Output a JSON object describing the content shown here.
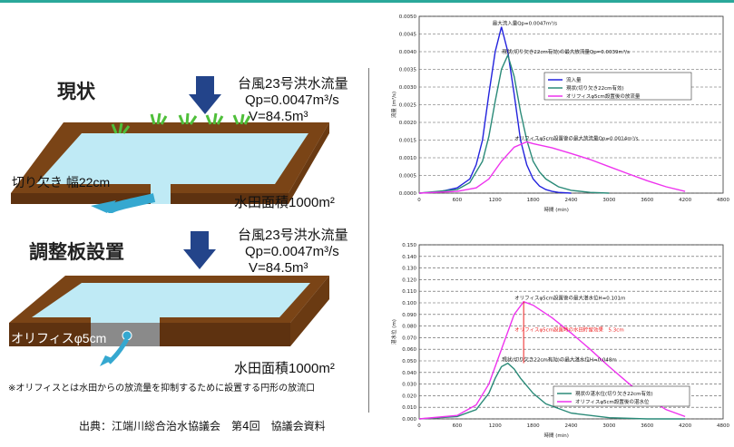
{
  "colors": {
    "soil": "#7a4416",
    "soil_dark": "#5e3210",
    "water": "#bfeaf5",
    "grass": "#4fbf3a",
    "arrow_blue": "#23448a",
    "outflow": "#35a8d0",
    "series_inflow": "#2222dd",
    "series_current": "#2a8a78",
    "series_orifice": "#ee33ee",
    "teal_bar": "#2aa89a"
  },
  "current": {
    "title": "現状",
    "typhoon": "台風23号洪水流量",
    "qp": "Qp=0.0047m³/s",
    "v": "V=84.5m³",
    "notch": "切り欠き 幅22cm",
    "area": "水田面積1000m²"
  },
  "plate": {
    "title": "調整板設置",
    "typhoon": "台風23号洪水流量",
    "qp": "Qp=0.0047m³/s",
    "v": "V=84.5m³",
    "orifice": "オリフィスφ5cm",
    "area": "水田面積1000m²"
  },
  "note": "※オリフィスとは水田からの放流量を抑制するために設置する円形の放流口",
  "source": "出典：江端川総合治水協議会　第4回　協議会資料",
  "chart_data": [
    {
      "type": "line",
      "ylabel": "流量 (m³/s)",
      "xlabel": "時間 (min)",
      "xlim": [
        0,
        4800
      ],
      "ylim": [
        0,
        0.005
      ],
      "xticks": [
        0,
        600,
        1200,
        1800,
        2400,
        3000,
        3600,
        4200,
        4800
      ],
      "yticks": [
        0,
        0.0005,
        0.001,
        0.0015,
        0.002,
        0.0025,
        0.003,
        0.0035,
        0.004,
        0.0045,
        0.005
      ],
      "ytick_labels": [
        "0.0000",
        "0.0005",
        "0.0010",
        "0.0015",
        "0.0020",
        "0.0025",
        "0.0030",
        "0.0035",
        "0.0040",
        "0.0045",
        "0.0050"
      ],
      "grid": true,
      "legend_position": "right",
      "annotations": [
        {
          "text": "最大流入量Qp=0.0047m³/s",
          "at": [
            1300,
            0.0047
          ]
        },
        {
          "text": "現状(切り欠き22cm有効)の最大放流量Qp=0.0039m³/s",
          "at": [
            1450,
            0.0039
          ]
        },
        {
          "text": "オリフィスφ5cm設置後の最大放流量Qp=0.0014m³/s",
          "at": [
            1650,
            0.00145
          ]
        }
      ],
      "series": [
        {
          "name": "流入量",
          "x": [
            0,
            300,
            600,
            800,
            900,
            1000,
            1100,
            1200,
            1300,
            1400,
            1500,
            1600,
            1700,
            1800,
            1900,
            2000,
            2100,
            2200,
            2400
          ],
          "values": [
            0,
            3e-05,
            0.00015,
            0.0004,
            0.0008,
            0.0015,
            0.0028,
            0.004,
            0.0047,
            0.004,
            0.0028,
            0.0015,
            0.0008,
            0.0004,
            0.0002,
            0.0001,
            5e-05,
            2e-05,
            0
          ]
        },
        {
          "name": "現状(切り欠き22cm有効)",
          "x": [
            0,
            600,
            800,
            1000,
            1100,
            1200,
            1300,
            1400,
            1500,
            1600,
            1700,
            1800,
            1900,
            2000,
            2200,
            2400,
            2700,
            3000
          ],
          "values": [
            0,
            0.0001,
            0.0003,
            0.0009,
            0.0016,
            0.0026,
            0.0035,
            0.0039,
            0.0033,
            0.0023,
            0.0015,
            0.0009,
            0.0006,
            0.0004,
            0.00018,
            8e-05,
            2e-05,
            0
          ]
        },
        {
          "name": "オリフィスφ5cm設置後の放流量",
          "x": [
            0,
            600,
            900,
            1100,
            1300,
            1500,
            1700,
            1800,
            2100,
            2400,
            2700,
            3000,
            3300,
            3600,
            3900,
            4200
          ],
          "values": [
            0,
            5e-05,
            0.00015,
            0.0004,
            0.0009,
            0.0013,
            0.00145,
            0.0014,
            0.00128,
            0.00112,
            0.00095,
            0.00075,
            0.00055,
            0.00035,
            0.00018,
            5e-05
          ]
        }
      ]
    },
    {
      "type": "line",
      "ylabel": "湛水位 (m)",
      "xlabel": "時間 (min)",
      "xlim": [
        0,
        4800
      ],
      "ylim": [
        0,
        0.15
      ],
      "xticks": [
        0,
        600,
        1200,
        1800,
        2400,
        3000,
        3600,
        4200,
        4800
      ],
      "yticks": [
        0,
        0.01,
        0.02,
        0.03,
        0.04,
        0.05,
        0.06,
        0.07,
        0.08,
        0.09,
        0.1,
        0.11,
        0.12,
        0.13,
        0.14,
        0.15
      ],
      "ytick_labels": [
        "0.000",
        "0.010",
        "0.020",
        "0.030",
        "0.040",
        "0.050",
        "0.060",
        "0.070",
        "0.080",
        "0.090",
        "0.100",
        "0.110",
        "0.120",
        "0.130",
        "0.140",
        "0.150"
      ],
      "grid": true,
      "legend_position": "bottom-right",
      "annotations": [
        {
          "text": "オリフィスφ5cm設置後の最大湛水位H=0.101m",
          "at": [
            1650,
            0.101
          ]
        },
        {
          "text": "オリフィスφ5cm設置時の水田貯留効果　5.3cm",
          "at": [
            1650,
            0.074
          ]
        },
        {
          "text": "現状(切り欠き22cm有効)の最大湛水位H=0.048m",
          "at": [
            1450,
            0.048
          ]
        }
      ],
      "series": [
        {
          "name": "現状の湛水位(切り欠き22cm有効)",
          "x": [
            0,
            600,
            900,
            1100,
            1200,
            1300,
            1400,
            1500,
            1600,
            1800,
            2000,
            2400,
            3000,
            3600,
            4200
          ],
          "values": [
            0,
            0.002,
            0.008,
            0.022,
            0.035,
            0.045,
            0.048,
            0.043,
            0.035,
            0.022,
            0.013,
            0.005,
            0.001,
            0,
            0
          ]
        },
        {
          "name": "オリフィスφ5cm設置後の湛水位",
          "x": [
            0,
            600,
            900,
            1100,
            1300,
            1500,
            1650,
            1800,
            2100,
            2400,
            2700,
            3000,
            3300,
            3600,
            3900,
            4200
          ],
          "values": [
            0,
            0.003,
            0.012,
            0.03,
            0.06,
            0.09,
            0.101,
            0.098,
            0.087,
            0.074,
            0.06,
            0.045,
            0.031,
            0.018,
            0.008,
            0.002
          ]
        }
      ]
    }
  ]
}
